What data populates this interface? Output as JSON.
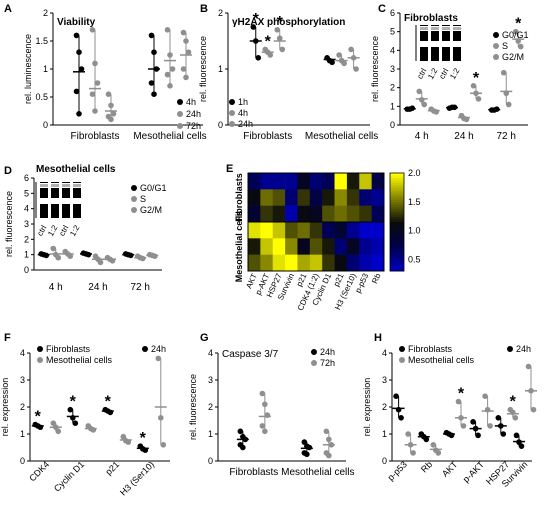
{
  "figure": {
    "colors": {
      "black": "#000000",
      "dark_gray": "#555555",
      "gray": "#8f8f8f",
      "light_gray": "#b0b0b0",
      "star": "#000000"
    }
  },
  "chart_data": [
    {
      "panel": "A",
      "type": "scatter",
      "title": "Viability",
      "ylabel": "rel. luminescence",
      "ylim": [
        0,
        2.0
      ],
      "yticks": [
        0,
        0.5,
        1.0,
        1.5,
        2.0
      ],
      "categories": [
        "Fibroblasts",
        "Mesothelial cells"
      ],
      "series": [
        {
          "name": "4h",
          "color": "#000000",
          "points": [
            [
              1.6,
              1.3,
              1.0,
              0.6,
              0.2
            ],
            [
              1.6,
              1.3,
              1.0,
              0.75,
              0.55
            ]
          ],
          "mean": [
            0.95,
            1.0
          ]
        },
        {
          "name": "24h",
          "color": "#8f8f8f",
          "points": [
            [
              1.7,
              1.1,
              0.75,
              0.55,
              0.25
            ],
            [
              1.7,
              1.25,
              1.0,
              0.9,
              0.7
            ]
          ],
          "mean": [
            0.65,
            1.15
          ]
        },
        {
          "name": "72h",
          "color": "#8f8f8f",
          "points": [
            [
              0.55,
              0.35,
              0.2,
              0.15,
              0.1
            ],
            [
              1.65,
              1.5,
              1.3,
              1.0,
              0.85
            ]
          ],
          "mean": [
            0.25,
            1.25
          ]
        }
      ]
    },
    {
      "panel": "B",
      "type": "scatter",
      "title": "γH2AX phosphorylation",
      "ylabel": "rel. fluorescence",
      "ylim": [
        0,
        2
      ],
      "yticks": [
        0,
        1,
        2
      ],
      "categories": [
        "Fibroblasts",
        "Mesothelial cells"
      ],
      "series": [
        {
          "name": "1h",
          "color": "#000000",
          "points": [
            [
              1.75,
              1.5,
              1.2
            ],
            [
              1.2,
              1.15,
              1.12
            ]
          ],
          "mean": [
            1.5,
            1.17
          ],
          "sig": [
            true,
            false
          ]
        },
        {
          "name": "4h",
          "color": "#8f8f8f",
          "points": [
            [
              1.35,
              1.3,
              1.25
            ],
            [
              1.25,
              1.15,
              1.1
            ]
          ],
          "mean": [
            1.3,
            1.15
          ],
          "sig": [
            true,
            false
          ]
        },
        {
          "name": "24h",
          "color": "#8f8f8f",
          "points": [
            [
              1.7,
              1.55,
              1.35
            ],
            [
              1.35,
              1.2,
              1.0
            ]
          ],
          "mean": [
            1.5,
            1.2
          ],
          "sig": [
            true,
            false
          ]
        }
      ]
    },
    {
      "panel": "C",
      "type": "scatter",
      "title": "Fibroblasts",
      "ylabel": "rel. fluorescence",
      "ylim": [
        0,
        6
      ],
      "yticks": [
        0,
        1,
        2,
        3,
        4,
        5,
        6
      ],
      "categories": [
        "4 h",
        "24 h",
        "72 h"
      ],
      "legend": [
        "G0/G1",
        "S",
        "G2/M"
      ],
      "inset_labels": [
        "ctrl",
        "1:2"
      ],
      "series": [
        {
          "name": "G0/G1",
          "color": "#000000",
          "points": [
            [
              0.85,
              0.85,
              0.9
            ],
            [
              0.9,
              0.95,
              0.95
            ],
            [
              0.8,
              0.8,
              0.85
            ]
          ],
          "mean": [
            0.87,
            0.93,
            0.82
          ]
        },
        {
          "name": "S",
          "color": "#8f8f8f",
          "points": [
            [
              1.8,
              1.35,
              1.1
            ],
            [
              0.5,
              0.35,
              0.3
            ],
            [
              2.8,
              1.7,
              1.1
            ]
          ],
          "mean": [
            1.4,
            0.4,
            1.8
          ]
        },
        {
          "name": "G2/M",
          "color": "#8f8f8f",
          "points": [
            [
              0.85,
              0.75,
              0.7
            ],
            [
              2.1,
              1.7,
              1.4
            ],
            [
              5.0,
              4.5,
              4.2
            ]
          ],
          "mean": [
            0.77,
            1.7,
            4.6
          ],
          "sig": [
            false,
            true,
            true
          ]
        }
      ]
    },
    {
      "panel": "D",
      "type": "scatter",
      "title": "Mesothelial cells",
      "ylabel": "rel. fluorescence",
      "ylim": [
        0,
        6
      ],
      "yticks": [
        0,
        1,
        2,
        3,
        4,
        5,
        6
      ],
      "categories": [
        "4 h",
        "24 h",
        "72 h"
      ],
      "legend": [
        "G0/G1",
        "S",
        "G2/M"
      ],
      "inset_labels": [
        "ctrl",
        "1:2"
      ],
      "series": [
        {
          "name": "G0/G1",
          "color": "#000000",
          "points": [
            [
              1.05,
              1.0,
              0.95
            ],
            [
              1.1,
              1.05,
              1.0
            ],
            [
              1.05,
              1.0,
              0.95
            ]
          ],
          "mean": [
            1.0,
            1.05,
            1.0
          ]
        },
        {
          "name": "S",
          "color": "#8f8f8f",
          "points": [
            [
              1.4,
              1.0,
              0.8
            ],
            [
              0.9,
              0.7,
              0.5
            ],
            [
              0.9,
              0.8,
              0.75
            ]
          ],
          "mean": [
            1.05,
            0.7,
            0.8
          ]
        },
        {
          "name": "G2/M",
          "color": "#8f8f8f",
          "points": [
            [
              1.2,
              1.05,
              0.9
            ],
            [
              0.8,
              0.7,
              0.6
            ],
            [
              1.0,
              0.95,
              0.9
            ]
          ],
          "mean": [
            1.05,
            0.7,
            0.95
          ]
        }
      ]
    },
    {
      "panel": "E",
      "type": "heatmap",
      "rows": [
        "Fibroblasts",
        "Fibroblasts",
        "Fibroblasts",
        "Mesothelial cells",
        "Mesothelial cells",
        "Mesothelial cells"
      ],
      "row_groups": [
        "Fibroblasts",
        "Mesothelial cells"
      ],
      "columns": [
        "AKT",
        "p-AKT",
        "HSP27",
        "Survivin",
        "p21",
        "CDK4 (1:2)",
        "Cyclin D1",
        "p21",
        "H3 (Ser10)",
        "p-p53",
        "Rb"
      ],
      "values": [
        [
          0.7,
          0.5,
          0.5,
          0.5,
          1.0,
          0.6,
          0.7,
          2.0,
          1.2,
          1.8,
          0.8
        ],
        [
          1.1,
          1.5,
          1.4,
          0.6,
          1.3,
          0.8,
          1.2,
          1.6,
          1.3,
          0.6,
          0.5
        ],
        [
          0.9,
          1.3,
          1.2,
          0.4,
          1.1,
          1.0,
          1.4,
          1.5,
          1.4,
          1.3,
          0.7
        ],
        [
          1.9,
          2.0,
          1.8,
          1.4,
          1.5,
          1.3,
          0.7,
          0.9,
          0.5,
          0.3,
          0.3
        ],
        [
          1.2,
          1.8,
          2.0,
          1.6,
          1.0,
          1.4,
          1.2,
          0.6,
          1.0,
          0.5,
          0.4
        ],
        [
          1.4,
          1.6,
          1.9,
          2.0,
          1.7,
          1.8,
          1.3,
          1.1,
          0.6,
          0.4,
          0.3
        ]
      ],
      "colorbar": {
        "min": 0.3,
        "max": 2.0,
        "ticks": [
          0.5,
          1.0,
          1.5,
          2.0
        ]
      }
    },
    {
      "panel": "F",
      "type": "scatter",
      "ylabel": "rel. expression",
      "ylim": [
        0,
        4
      ],
      "yticks": [
        0,
        1,
        2,
        3,
        4
      ],
      "categories": [
        "CDK4",
        "Cyclin D1",
        "p21",
        "H3 (Ser10)"
      ],
      "legend": [
        "Fibroblasts",
        "Mesothelial cells"
      ],
      "timepoint": "24h",
      "series": [
        {
          "name": "Fibroblasts",
          "color": "#000000",
          "points": [
            [
              1.35,
              1.3,
              1.25
            ],
            [
              1.9,
              1.6,
              1.4
            ],
            [
              1.9,
              1.85,
              1.8
            ],
            [
              0.55,
              0.45,
              0.4
            ]
          ],
          "mean": [
            1.3,
            1.65,
            1.85,
            0.47
          ],
          "sig": [
            true,
            true,
            true,
            true
          ]
        },
        {
          "name": "Mesothelial cells",
          "color": "#8f8f8f",
          "points": [
            [
              1.4,
              1.25,
              1.1
            ],
            [
              1.3,
              1.2,
              1.15
            ],
            [
              0.9,
              0.75,
              0.7
            ],
            [
              3.8,
              1.6,
              0.6
            ]
          ],
          "mean": [
            1.25,
            1.2,
            0.78,
            2.0
          ]
        }
      ]
    },
    {
      "panel": "G",
      "type": "scatter",
      "title": "Caspase 3/7",
      "ylabel": "rel. fluorescence",
      "ylim": [
        0,
        4
      ],
      "yticks": [
        0,
        1,
        2,
        3,
        4
      ],
      "categories": [
        "Fibroblasts",
        "Mesothelial cells"
      ],
      "series": [
        {
          "name": "24h",
          "color": "#000000",
          "points": [
            [
              1.1,
              0.9,
              0.8,
              0.6,
              0.5
            ],
            [
              0.7,
              0.55,
              0.5,
              0.3,
              0.25
            ]
          ],
          "mean": [
            0.8,
            0.47
          ]
        },
        {
          "name": "72h",
          "color": "#8f8f8f",
          "points": [
            [
              2.5,
              2.1,
              1.7,
              1.3,
              1.1
            ],
            [
              1.1,
              0.8,
              0.6,
              0.3,
              0.2
            ]
          ],
          "mean": [
            1.65,
            0.6
          ]
        }
      ]
    },
    {
      "panel": "H",
      "type": "scatter",
      "ylabel": "rel. expression",
      "ylim": [
        0,
        4
      ],
      "yticks": [
        0,
        1,
        2,
        3,
        4
      ],
      "categories": [
        "p-p53",
        "Rb",
        "AKT",
        "p-AKT",
        "HSP27",
        "Survivin"
      ],
      "legend": [
        "Fibroblasts",
        "Mesothelial cells"
      ],
      "timepoint": "24h",
      "series": [
        {
          "name": "Fibroblasts",
          "color": "#000000",
          "points": [
            [
              2.4,
              1.9,
              1.6
            ],
            [
              1.0,
              0.9,
              0.8
            ],
            [
              1.05,
              1.0,
              0.95
            ],
            [
              1.45,
              1.2,
              0.95
            ],
            [
              1.6,
              1.3,
              1.0
            ],
            [
              0.95,
              0.7,
              0.55
            ]
          ],
          "mean": [
            1.95,
            0.9,
            1.0,
            1.2,
            1.3,
            0.72
          ]
        },
        {
          "name": "Mesothelial cells",
          "color": "#8f8f8f",
          "points": [
            [
              1.0,
              0.6,
              0.3
            ],
            [
              0.6,
              0.4,
              0.3
            ],
            [
              2.2,
              1.6,
              1.3
            ],
            [
              2.4,
              1.9,
              1.3
            ],
            [
              1.9,
              1.8,
              1.6
            ],
            [
              3.5,
              2.6,
              1.9
            ]
          ],
          "mean": [
            0.6,
            0.43,
            1.6,
            1.85,
            1.75,
            2.6
          ],
          "sig": [
            false,
            false,
            true,
            false,
            true,
            false
          ]
        }
      ]
    }
  ]
}
